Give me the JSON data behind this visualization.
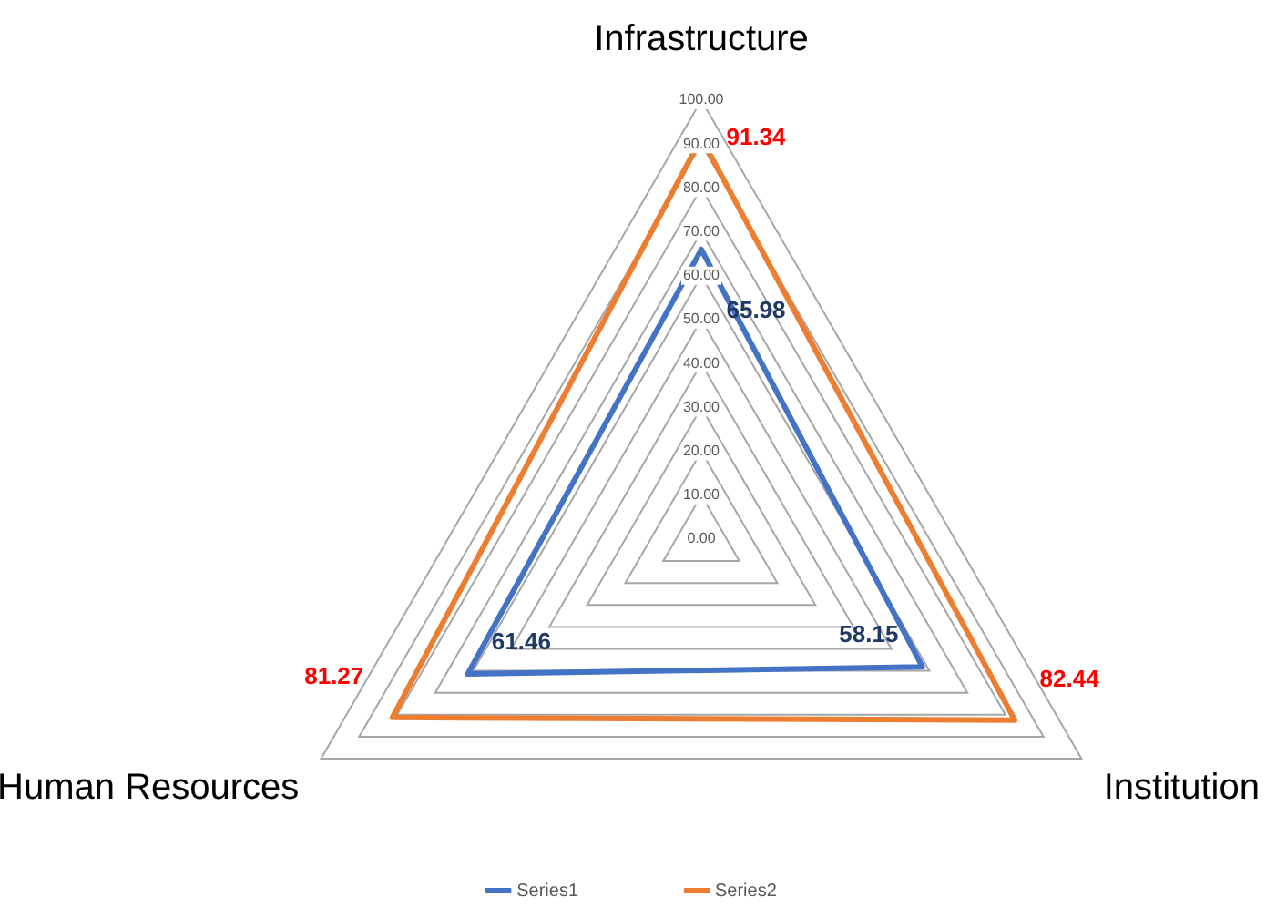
{
  "chart_data": {
    "type": "radar",
    "categories": [
      "Infrastructure",
      "Institution",
      "Human Resources"
    ],
    "series": [
      {
        "name": "Series1",
        "color": "#4472c4",
        "values": [
          65.98,
          58.15,
          61.46
        ]
      },
      {
        "name": "Series2",
        "color": "#ed7d31",
        "values": [
          91.34,
          82.44,
          81.27
        ]
      }
    ],
    "ylim": [
      0,
      100
    ],
    "yticks": [
      {
        "value": 0,
        "label": "0.00"
      },
      {
        "value": 10,
        "label": "10.00"
      },
      {
        "value": 20,
        "label": "20.00"
      },
      {
        "value": 30,
        "label": "30.00"
      },
      {
        "value": 40,
        "label": "40.00"
      },
      {
        "value": 50,
        "label": "50.00"
      },
      {
        "value": 60,
        "label": "60.00"
      },
      {
        "value": 70,
        "label": "70.00"
      },
      {
        "value": 80,
        "label": "80.00"
      },
      {
        "value": 90,
        "label": "90.00"
      },
      {
        "value": 100,
        "label": "100.00"
      }
    ],
    "grid": true,
    "legend": "bottom",
    "marker": "none",
    "line_style": "solid",
    "data_labels": true
  }
}
